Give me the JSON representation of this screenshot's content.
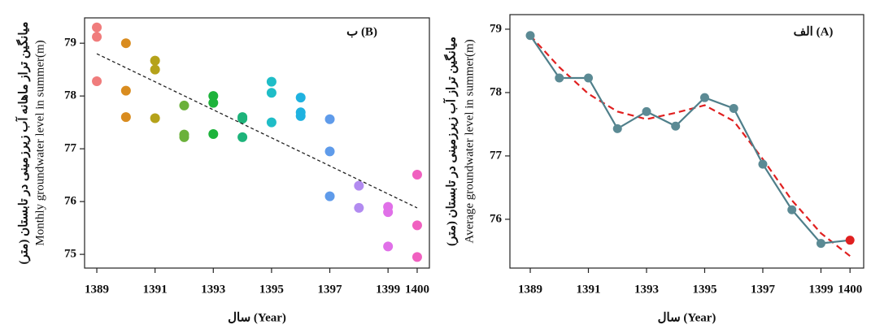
{
  "chart_data": [
    {
      "type": "scatter",
      "title": "ب (B)",
      "xlabel": "سال (Year)",
      "ylabel": [
        "میانگین تراز ماهانه آب زیرزمینی در تابستان (متر)",
        "Monthly groundwater level in summer(m)"
      ],
      "x": [
        1389,
        1389,
        1389,
        1390,
        1390,
        1390,
        1391,
        1391,
        1391,
        1392,
        1392,
        1392,
        1393,
        1393,
        1393,
        1394,
        1394,
        1394,
        1395,
        1395,
        1395,
        1396,
        1396,
        1396,
        1397,
        1397,
        1397,
        1398,
        1398,
        1399,
        1399,
        1399,
        1400,
        1400,
        1400
      ],
      "values": [
        79.3,
        79.12,
        78.28,
        79.0,
        78.1,
        77.6,
        78.67,
        78.5,
        77.58,
        77.82,
        77.27,
        77.22,
        78.0,
        77.87,
        77.28,
        77.6,
        77.57,
        77.22,
        78.27,
        78.06,
        77.5,
        77.97,
        77.69,
        77.62,
        77.56,
        76.95,
        76.1,
        76.3,
        75.88,
        75.9,
        75.8,
        75.15,
        76.51,
        75.55,
        74.95
      ],
      "colors": [
        "#f07c7c",
        "#f07c7c",
        "#f07c7c",
        "#d98c1f",
        "#d98c1f",
        "#d98c1f",
        "#b5a21a",
        "#b5a21a",
        "#b5a21a",
        "#6bb13a",
        "#6bb13a",
        "#6bb13a",
        "#1db33b",
        "#1db33b",
        "#1db33b",
        "#1db37a",
        "#1db37a",
        "#1db37a",
        "#1fbdc7",
        "#1fbdc7",
        "#1fbdc7",
        "#1fb2e0",
        "#1fb2e0",
        "#1fb2e0",
        "#5f9bea",
        "#5f9bea",
        "#5f9bea",
        "#b28bf0",
        "#b28bf0",
        "#e070e8",
        "#e070e8",
        "#e070e8",
        "#f060c0",
        "#f060c0",
        "#f060c0"
      ],
      "trend": {
        "x": [
          1389,
          1400
        ],
        "values": [
          78.8,
          75.88
        ],
        "color": "#222"
      },
      "xlim": [
        1388.58,
        1400.42
      ],
      "ylim": [
        74.74,
        79.48
      ],
      "xticks": [
        1389,
        1391,
        1393,
        1395,
        1397,
        1399,
        1400
      ],
      "yticks": [
        75,
        76,
        77,
        78,
        79
      ]
    },
    {
      "type": "line",
      "title": "الف (A)",
      "xlabel": "سال (Year)",
      "ylabel": [
        "میانگین تراز آب زیرزمینی در تابستان (متر)",
        "Average groundwater level in summer(m)"
      ],
      "x": [
        1389,
        1390,
        1391,
        1392,
        1393,
        1394,
        1395,
        1396,
        1397,
        1398,
        1399,
        1400
      ],
      "values": [
        78.9,
        78.23,
        78.23,
        77.43,
        77.7,
        77.47,
        77.92,
        77.75,
        76.87,
        76.15,
        75.62,
        75.67
      ],
      "color": "#4f7f8a",
      "marker_color": "#5b8a94",
      "last_marker_color": "#e02020",
      "trend": {
        "x": [
          1389,
          1390,
          1391,
          1392,
          1393,
          1394,
          1395,
          1396,
          1397,
          1398,
          1399,
          1400
        ],
        "values": [
          78.9,
          78.4,
          77.98,
          77.7,
          77.58,
          77.68,
          77.8,
          77.55,
          76.95,
          76.3,
          75.78,
          75.42
        ],
        "color": "#e02020"
      },
      "xlim": [
        1388.3,
        1400.47
      ],
      "ylim": [
        75.23,
        79.23
      ],
      "xticks": [
        1389,
        1391,
        1393,
        1395,
        1397,
        1399,
        1400
      ],
      "yticks": [
        76,
        77,
        78,
        79
      ]
    }
  ]
}
